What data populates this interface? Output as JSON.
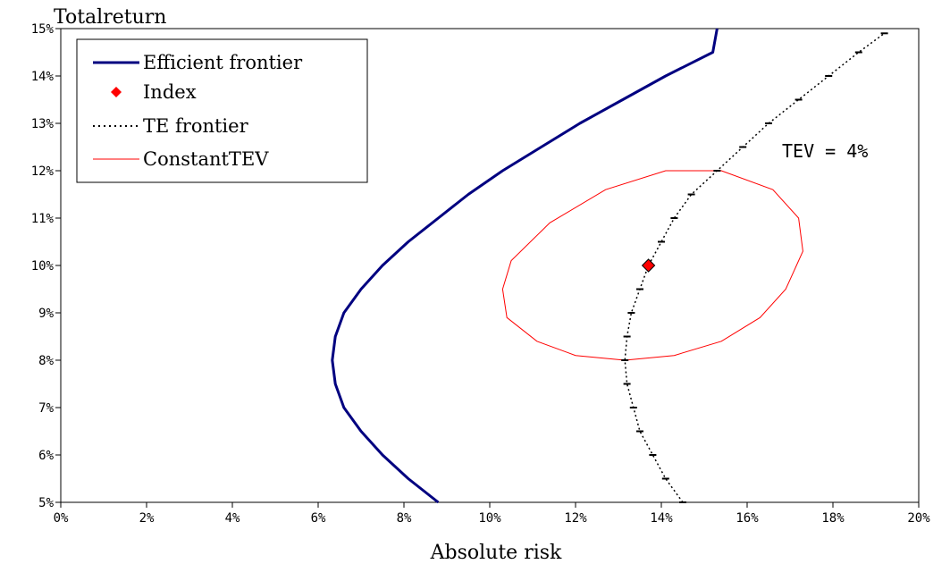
{
  "chart_data": {
    "type": "line",
    "xlabel": "Absolute risk",
    "ylabel": "Totalreturn",
    "xlim": [
      0,
      20
    ],
    "ylim": [
      5,
      15
    ],
    "x_ticks": [
      "0%",
      "2%",
      "4%",
      "6%",
      "8%",
      "10%",
      "12%",
      "14%",
      "16%",
      "18%",
      "20%"
    ],
    "y_ticks": [
      "5%",
      "6%",
      "7%",
      "8%",
      "9%",
      "10%",
      "11%",
      "12%",
      "13%",
      "14%",
      "15%"
    ],
    "legend_position": "top-left",
    "annotation": "TEV = 4%",
    "series": [
      {
        "name": "Efficient frontier",
        "color": "#000080",
        "style": "solid-thick",
        "points": [
          [
            8.8,
            5.0
          ],
          [
            8.1,
            5.5
          ],
          [
            7.5,
            6.0
          ],
          [
            7.0,
            6.5
          ],
          [
            6.6,
            7.0
          ],
          [
            6.4,
            7.5
          ],
          [
            6.33,
            8.0
          ],
          [
            6.4,
            8.5
          ],
          [
            6.6,
            9.0
          ],
          [
            7.0,
            9.5
          ],
          [
            7.5,
            10.0
          ],
          [
            8.1,
            10.5
          ],
          [
            8.8,
            11.0
          ],
          [
            9.5,
            11.5
          ],
          [
            10.3,
            12.0
          ],
          [
            11.2,
            12.5
          ],
          [
            12.1,
            13.0
          ],
          [
            13.1,
            13.5
          ],
          [
            14.1,
            14.0
          ],
          [
            15.2,
            14.5
          ],
          [
            15.3,
            15.0
          ]
        ]
      },
      {
        "name": "Index",
        "color": "#ff0000",
        "style": "diamond-marker",
        "points": [
          [
            13.7,
            10.0
          ]
        ]
      },
      {
        "name": "TE frontier",
        "color": "#000000",
        "style": "dotted-with-dashes",
        "points": [
          [
            14.5,
            5.0
          ],
          [
            14.1,
            5.5
          ],
          [
            13.8,
            6.0
          ],
          [
            13.5,
            6.5
          ],
          [
            13.35,
            7.0
          ],
          [
            13.2,
            7.5
          ],
          [
            13.15,
            8.0
          ],
          [
            13.2,
            8.5
          ],
          [
            13.3,
            9.0
          ],
          [
            13.5,
            9.5
          ],
          [
            13.7,
            10.0
          ],
          [
            14.0,
            10.5
          ],
          [
            14.3,
            11.0
          ],
          [
            14.7,
            11.5
          ],
          [
            15.3,
            12.0
          ],
          [
            15.9,
            12.5
          ],
          [
            16.5,
            13.0
          ],
          [
            17.2,
            13.5
          ],
          [
            17.9,
            14.0
          ],
          [
            18.6,
            14.5
          ],
          [
            19.2,
            14.9
          ]
        ]
      },
      {
        "name": "ConstantTEV",
        "color": "#ff0000",
        "style": "solid-thin",
        "points": [
          [
            13.15,
            8.0
          ],
          [
            14.3,
            8.1
          ],
          [
            15.4,
            8.4
          ],
          [
            16.3,
            8.9
          ],
          [
            16.9,
            9.5
          ],
          [
            17.3,
            10.3
          ],
          [
            17.2,
            11.0
          ],
          [
            16.6,
            11.6
          ],
          [
            15.4,
            12.0
          ],
          [
            14.1,
            12.0
          ],
          [
            12.7,
            11.6
          ],
          [
            11.4,
            10.9
          ],
          [
            10.5,
            10.1
          ],
          [
            10.3,
            9.5
          ],
          [
            10.4,
            8.9
          ],
          [
            11.1,
            8.4
          ],
          [
            12.0,
            8.1
          ],
          [
            13.15,
            8.0
          ]
        ]
      }
    ]
  }
}
